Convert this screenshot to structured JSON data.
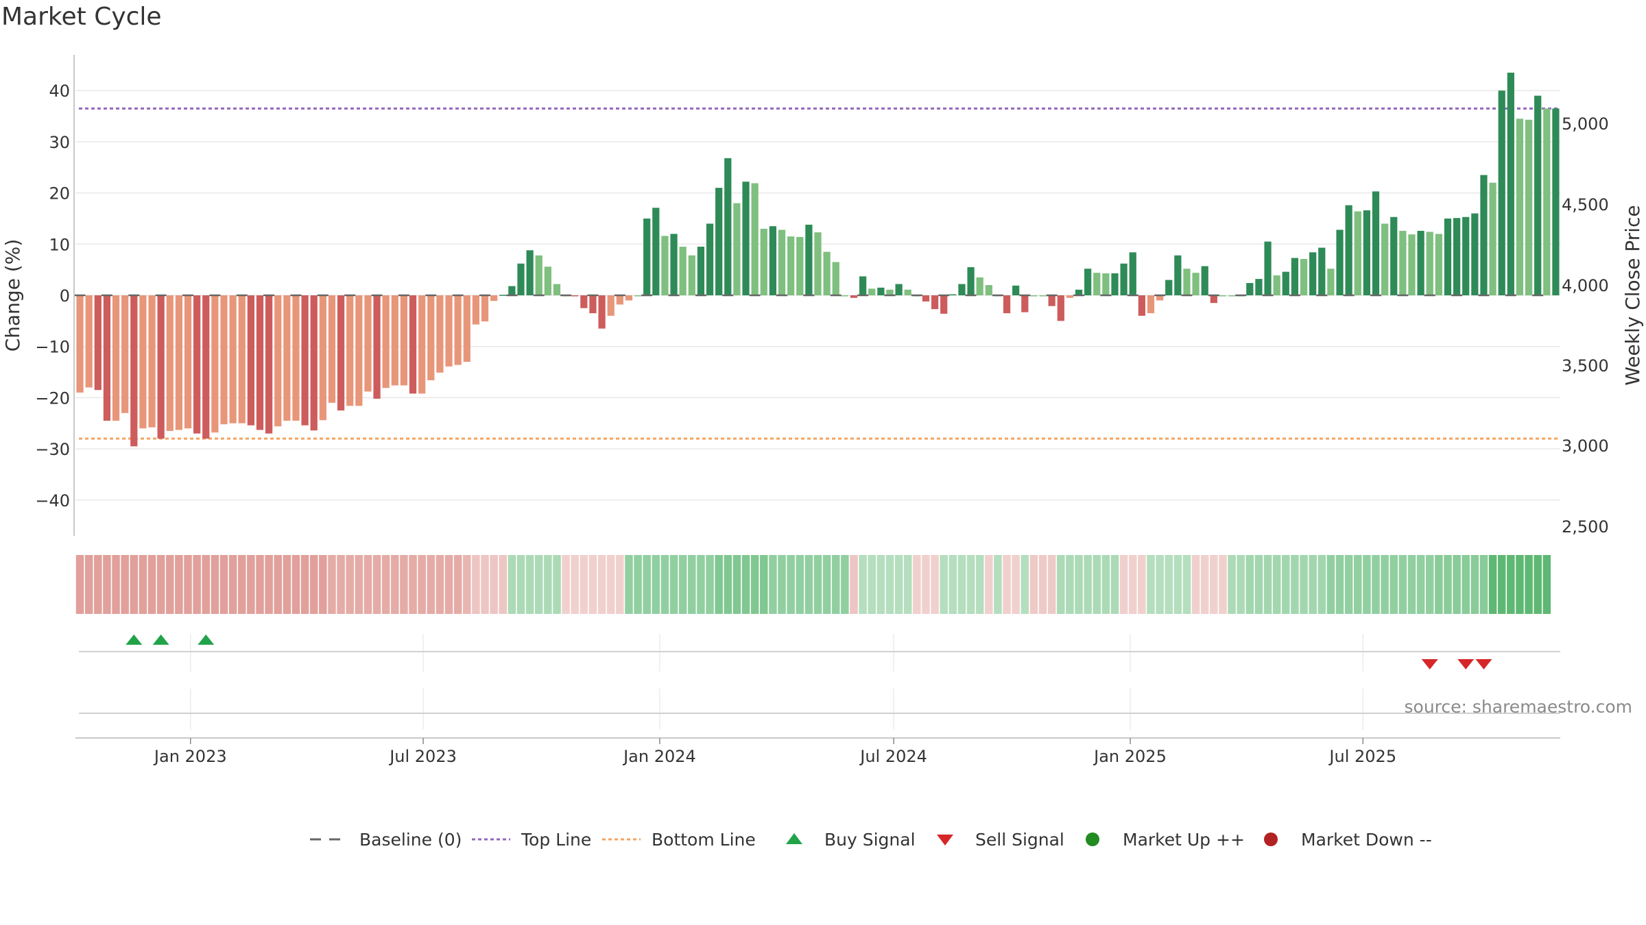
{
  "title": "Market Cycle",
  "source": "source: sharemaestro.com",
  "colors": {
    "strong_up": "#2e8b57",
    "mild_up": "#7fbf7f",
    "mild_down": "#e8967a",
    "strong_down": "#cd5c5c",
    "top_line": "#9467bd",
    "bottom_line": "#f4a460",
    "buy": "#22a34a",
    "sell": "#d62728",
    "market_up": "#228b22",
    "market_down": "#b22222",
    "baseline": "#666666"
  },
  "chart_data": {
    "type": "bar",
    "start_date": "2022-10-07",
    "interval_days": 7,
    "y_left": {
      "label": "Change (%)",
      "ticks": [
        40,
        30,
        20,
        10,
        0,
        -10,
        -20,
        -30,
        -40
      ],
      "range": [
        -47,
        47
      ]
    },
    "y_right": {
      "label": "Weekly Close Price",
      "ticks": [
        "5,000",
        "4,500",
        "4,000",
        "3,500",
        "3,000",
        "2,500"
      ]
    },
    "x_ticks": [
      {
        "label": "Jan 2023",
        "date": "2023-01-01"
      },
      {
        "label": "Jul 2023",
        "date": "2023-07-01"
      },
      {
        "label": "Jan 2024",
        "date": "2024-01-01"
      },
      {
        "label": "Jul 2024",
        "date": "2024-07-01"
      },
      {
        "label": "Jan 2025",
        "date": "2025-01-01"
      },
      {
        "label": "Jul 2025",
        "date": "2025-07-01"
      }
    ],
    "top_line": 36.5,
    "bottom_line": -28,
    "values": [
      -19,
      -18,
      -18.5,
      -24.5,
      -24.5,
      -23,
      -29.5,
      -26,
      -25.8,
      -28,
      -26.5,
      -26.3,
      -26,
      -27,
      -28,
      -26.8,
      -25.2,
      -25,
      -25,
      -25.4,
      -26.3,
      -27,
      -25.6,
      -24.5,
      -24.5,
      -25.4,
      -26.4,
      -24.4,
      -21,
      -22.5,
      -21.6,
      -21.6,
      -18.8,
      -20.2,
      -18.1,
      -17.6,
      -17.6,
      -19.2,
      -19.2,
      -16.6,
      -15.1,
      -13.9,
      -13.6,
      -13,
      -5.7,
      -5.1,
      -1.1,
      0.1,
      1.8,
      6.2,
      8.8,
      7.8,
      5.6,
      2.2,
      0,
      -0.2,
      -2.5,
      -3.5,
      -6.5,
      -4,
      -1.8,
      -1,
      0,
      15,
      17.1,
      11.6,
      12,
      9.5,
      7.8,
      9.5,
      14,
      21,
      26.8,
      18,
      22.2,
      21.9,
      13,
      13.5,
      12.8,
      11.5,
      11.4,
      13.8,
      12.3,
      8.5,
      6.5,
      0,
      -0.5,
      3.7,
      1.3,
      1.5,
      1.1,
      2.2,
      1.1,
      0,
      -1.2,
      -2.7,
      -3.6,
      0.2,
      2.2,
      5.5,
      3.5,
      2,
      0,
      -3.5,
      1.9,
      -3.3,
      0,
      0,
      -2.1,
      -5,
      -0.5,
      1.1,
      5.2,
      4.4,
      4.3,
      4.3,
      6.2,
      8.4,
      -4,
      -3.5,
      -1,
      3,
      7.8,
      5.2,
      4.4,
      5.7,
      -1.5,
      0,
      0,
      0,
      2.4,
      3.2,
      10.5,
      3.9,
      4.6,
      7.3,
      7.1,
      8.4,
      9.3,
      5.2,
      12.8,
      17.6,
      16.4,
      16.6,
      20.3,
      14,
      15.3,
      12.6,
      11.9,
      12.6,
      12.4,
      12,
      15,
      15.1,
      15.3,
      16,
      23.5,
      22,
      40,
      43.5,
      34.5,
      34.3,
      39,
      36.5,
      36.5
    ],
    "heat_strip": [
      -0.65,
      -0.65,
      -0.65,
      -0.65,
      -0.65,
      -0.65,
      -0.65,
      -0.65,
      -0.65,
      -0.65,
      -0.65,
      -0.65,
      -0.65,
      -0.65,
      -0.65,
      -0.65,
      -0.65,
      -0.65,
      -0.65,
      -0.65,
      -0.65,
      -0.65,
      -0.65,
      -0.65,
      -0.65,
      -0.65,
      -0.65,
      -0.65,
      -0.55,
      -0.55,
      -0.55,
      -0.55,
      -0.55,
      -0.55,
      -0.55,
      -0.55,
      -0.55,
      -0.55,
      -0.55,
      -0.55,
      -0.55,
      -0.55,
      -0.55,
      -0.45,
      -0.3,
      -0.3,
      -0.3,
      -0.3,
      0.3,
      0.3,
      0.3,
      0.3,
      0.3,
      0.3,
      -0.2,
      -0.2,
      -0.2,
      -0.2,
      -0.2,
      -0.2,
      -0.2,
      0.45,
      0.45,
      0.45,
      0.45,
      0.45,
      0.45,
      0.45,
      0.45,
      0.45,
      0.45,
      0.55,
      0.55,
      0.55,
      0.55,
      0.55,
      0.55,
      0.45,
      0.45,
      0.45,
      0.45,
      0.45,
      0.45,
      0.45,
      0.45,
      0.45,
      -0.3,
      0.25,
      0.25,
      0.25,
      0.25,
      0.25,
      0.25,
      -0.2,
      -0.2,
      -0.2,
      0.25,
      0.25,
      0.25,
      0.25,
      0.25,
      -0.2,
      0.25,
      -0.2,
      -0.2,
      0.25,
      -0.25,
      -0.25,
      -0.25,
      0.3,
      0.3,
      0.3,
      0.3,
      0.3,
      0.3,
      0.3,
      -0.2,
      -0.2,
      -0.2,
      0.25,
      0.25,
      0.25,
      0.25,
      0.25,
      -0.2,
      -0.2,
      -0.2,
      -0.2,
      0.3,
      0.3,
      0.35,
      0.35,
      0.35,
      0.35,
      0.35,
      0.35,
      0.35,
      0.35,
      0.35,
      0.45,
      0.45,
      0.45,
      0.45,
      0.45,
      0.45,
      0.45,
      0.45,
      0.45,
      0.45,
      0.45,
      0.45,
      0.5,
      0.5,
      0.5,
      0.5,
      0.5,
      0.5,
      0.75,
      0.75,
      0.75,
      0.75,
      0.75,
      0.75,
      0.75
    ],
    "buy_signals": [
      6,
      9,
      14
    ],
    "sell_signals": [
      150,
      154,
      156
    ]
  },
  "legend": [
    {
      "label": "Baseline (0)",
      "kind": "dash",
      "color": "#666666"
    },
    {
      "label": "Top Line",
      "kind": "dot",
      "color": "#9467bd"
    },
    {
      "label": "Bottom Line",
      "kind": "dot",
      "color": "#f4a460"
    },
    {
      "label": "Buy Signal",
      "kind": "tri-up",
      "color": "#22a34a"
    },
    {
      "label": "Sell Signal",
      "kind": "tri-down",
      "color": "#d62728"
    },
    {
      "label": "Market Up ++",
      "kind": "circle",
      "color": "#228b22"
    },
    {
      "label": "Market Down --",
      "kind": "circle",
      "color": "#b22222"
    }
  ]
}
